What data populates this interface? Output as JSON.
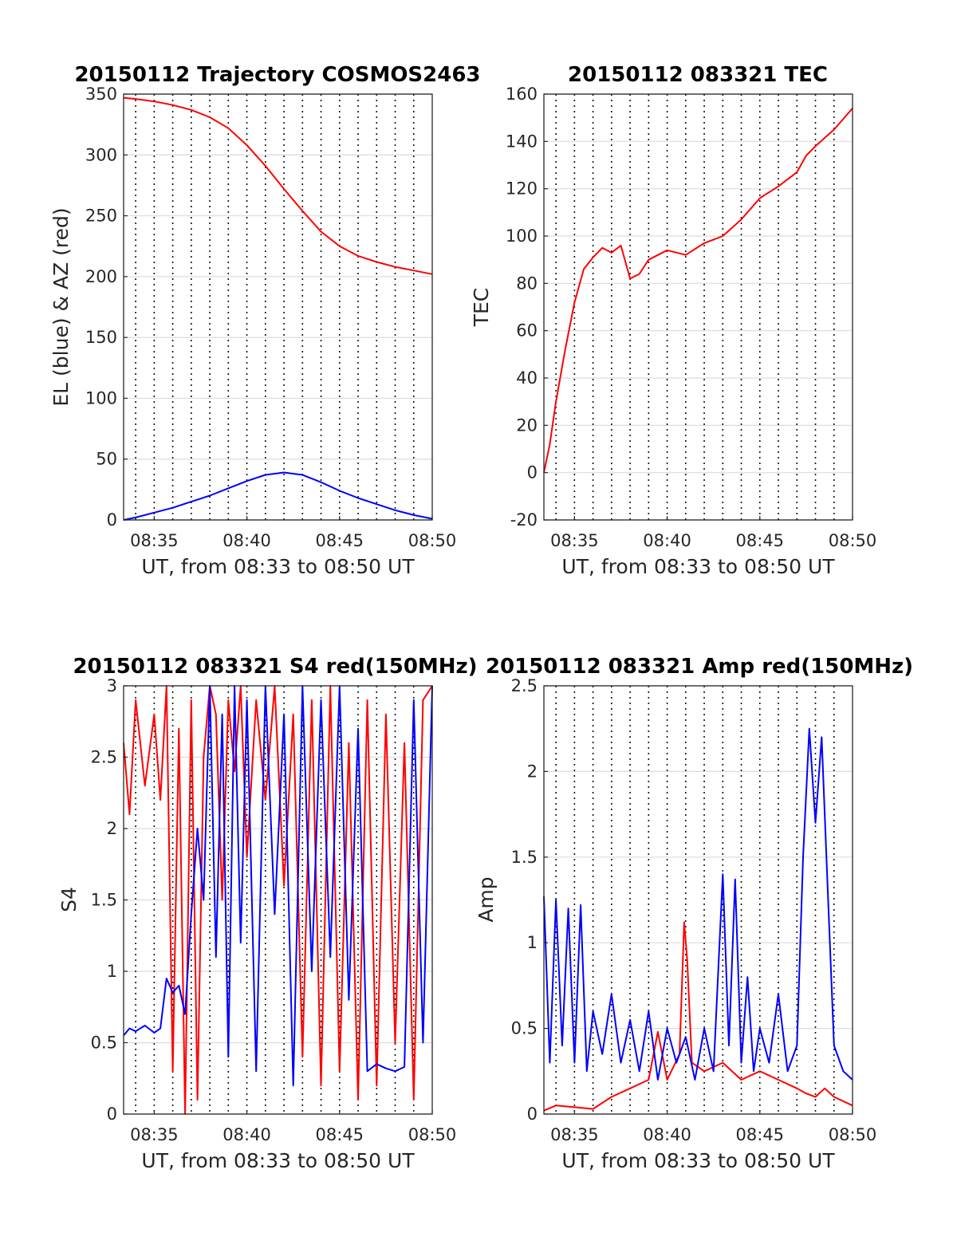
{
  "chart_data": [
    {
      "id": "traj",
      "type": "line",
      "title": "20150112 Trajectory COSMOS2463",
      "xlabel": "UT, from 08:33 to 08:50 UT",
      "ylabel": "EL (blue) & AZ (red)",
      "xlim": [
        "08:33:21",
        "08:50:00"
      ],
      "ylim": [
        0,
        350
      ],
      "xticks": [
        "08:35",
        "08:40",
        "08:45",
        "08:50"
      ],
      "yticks": [
        0,
        50,
        100,
        150,
        200,
        250,
        300,
        350
      ],
      "grid_minutes": [
        "08:34",
        "08:35",
        "08:36",
        "08:37",
        "08:38",
        "08:39",
        "08:40",
        "08:41",
        "08:42",
        "08:43",
        "08:44",
        "08:45",
        "08:46",
        "08:47",
        "08:48",
        "08:49"
      ],
      "series": [
        {
          "color": "#ff0000",
          "x": [
            "08:33:21",
            "08:34:00",
            "08:35:00",
            "08:36:00",
            "08:37:00",
            "08:38:00",
            "08:39:00",
            "08:40:00",
            "08:41:00",
            "08:42:00",
            "08:43:00",
            "08:44:00",
            "08:45:00",
            "08:46:00",
            "08:47:00",
            "08:48:00",
            "08:49:00",
            "08:50:00"
          ],
          "y": [
            347,
            346,
            344,
            341,
            337,
            331,
            322,
            308,
            291,
            272,
            254,
            237,
            225,
            217,
            212,
            208,
            205,
            202
          ]
        },
        {
          "color": "#0000ff",
          "x": [
            "08:33:21",
            "08:34:00",
            "08:35:00",
            "08:36:00",
            "08:37:00",
            "08:38:00",
            "08:39:00",
            "08:40:00",
            "08:41:00",
            "08:42:00",
            "08:43:00",
            "08:44:00",
            "08:45:00",
            "08:46:00",
            "08:47:00",
            "08:48:00",
            "08:49:00",
            "08:50:00"
          ],
          "y": [
            0,
            2,
            6,
            10,
            15,
            20,
            26,
            32,
            37,
            39,
            37,
            31,
            24,
            18,
            13,
            8,
            4,
            1
          ]
        }
      ]
    },
    {
      "id": "tec",
      "type": "line",
      "title": "20150112 083321 TEC",
      "xlabel": "UT, from 08:33 to 08:50 UT",
      "ylabel": "TEC",
      "xlim": [
        "08:33:21",
        "08:50:00"
      ],
      "ylim": [
        -20,
        160
      ],
      "xticks": [
        "08:35",
        "08:40",
        "08:45",
        "08:50"
      ],
      "yticks": [
        -20,
        0,
        20,
        40,
        60,
        80,
        100,
        120,
        140,
        160
      ],
      "grid_minutes": [
        "08:34",
        "08:35",
        "08:36",
        "08:37",
        "08:38",
        "08:39",
        "08:40",
        "08:41",
        "08:42",
        "08:43",
        "08:44",
        "08:45",
        "08:46",
        "08:47",
        "08:48",
        "08:49"
      ],
      "series": [
        {
          "color": "#ff0000",
          "x": [
            "08:33:21",
            "08:33:40",
            "08:34:00",
            "08:34:30",
            "08:35:00",
            "08:35:30",
            "08:36:00",
            "08:36:30",
            "08:37:00",
            "08:37:30",
            "08:38:00",
            "08:38:30",
            "08:39:00",
            "08:40:00",
            "08:41:00",
            "08:42:00",
            "08:43:00",
            "08:44:00",
            "08:45:00",
            "08:46:00",
            "08:47:00",
            "08:47:30",
            "08:48:00",
            "08:49:00",
            "08:50:00"
          ],
          "y": [
            0,
            12,
            30,
            52,
            72,
            86,
            91,
            95,
            93,
            96,
            82,
            84,
            90,
            94,
            92,
            97,
            100,
            107,
            116,
            121,
            127,
            134,
            138,
            145,
            154
          ]
        }
      ]
    },
    {
      "id": "s4",
      "type": "line",
      "title": "20150112 083321 S4 red(150MHz)",
      "xlabel": "UT, from 08:33 to 08:50 UT",
      "ylabel": "S4",
      "xlim": [
        "08:33:21",
        "08:50:00"
      ],
      "ylim": [
        0,
        3
      ],
      "xticks": [
        "08:35",
        "08:40",
        "08:45",
        "08:50"
      ],
      "yticks": [
        0,
        0.5,
        1,
        1.5,
        2,
        2.5,
        3
      ],
      "grid_minutes": [
        "08:34",
        "08:35",
        "08:36",
        "08:37",
        "08:38",
        "08:39",
        "08:40",
        "08:41",
        "08:42",
        "08:43",
        "08:44",
        "08:45",
        "08:46",
        "08:47",
        "08:48",
        "08:49"
      ],
      "series": [
        {
          "color": "#ff0000",
          "x": [
            "08:33:21",
            "08:33:40",
            "08:34:00",
            "08:34:30",
            "08:35:00",
            "08:35:20",
            "08:35:40",
            "08:36:00",
            "08:36:20",
            "08:36:40",
            "08:37:00",
            "08:37:20",
            "08:37:40",
            "08:38:00",
            "08:38:20",
            "08:38:40",
            "08:39:00",
            "08:39:20",
            "08:39:40",
            "08:40:00",
            "08:40:30",
            "08:41:00",
            "08:41:30",
            "08:42:00",
            "08:42:30",
            "08:43:00",
            "08:43:30",
            "08:44:00",
            "08:44:30",
            "08:45:00",
            "08:45:30",
            "08:46:00",
            "08:46:30",
            "08:47:00",
            "08:47:30",
            "08:48:00",
            "08:48:30",
            "08:49:00",
            "08:49:30",
            "08:50:00"
          ],
          "y": [
            2.6,
            2.1,
            2.9,
            2.3,
            2.8,
            2.2,
            3.0,
            0.3,
            2.7,
            0.0,
            2.9,
            0.1,
            2.5,
            3.0,
            2.8,
            1.5,
            2.9,
            2.4,
            3.0,
            1.8,
            2.9,
            2.2,
            3.0,
            1.6,
            2.8,
            0.4,
            2.9,
            0.2,
            3.0,
            0.3,
            2.6,
            0.1,
            2.9,
            0.2,
            2.8,
            0.5,
            2.6,
            0.1,
            2.9,
            3.0
          ]
        },
        {
          "color": "#0000ff",
          "x": [
            "08:33:21",
            "08:33:40",
            "08:34:00",
            "08:34:30",
            "08:35:00",
            "08:35:20",
            "08:35:40",
            "08:36:00",
            "08:36:20",
            "08:36:40",
            "08:37:00",
            "08:37:20",
            "08:37:40",
            "08:38:00",
            "08:38:20",
            "08:38:40",
            "08:39:00",
            "08:39:20",
            "08:39:40",
            "08:40:00",
            "08:40:30",
            "08:41:00",
            "08:41:30",
            "08:42:00",
            "08:42:30",
            "08:43:00",
            "08:43:30",
            "08:44:00",
            "08:44:30",
            "08:45:00",
            "08:45:30",
            "08:46:00",
            "08:46:30",
            "08:47:00",
            "08:47:30",
            "08:48:00",
            "08:48:30",
            "08:49:00",
            "08:49:30",
            "08:50:00"
          ],
          "y": [
            0.55,
            0.6,
            0.58,
            0.62,
            0.57,
            0.6,
            0.95,
            0.85,
            0.9,
            0.7,
            1.4,
            2.0,
            1.5,
            3.0,
            1.1,
            2.8,
            0.4,
            3.0,
            1.2,
            2.9,
            0.3,
            3.0,
            1.4,
            2.8,
            0.2,
            3.0,
            1.0,
            2.9,
            1.1,
            3.0,
            0.8,
            2.7,
            0.3,
            0.35,
            0.32,
            0.3,
            0.33,
            2.9,
            0.5,
            3.0
          ]
        }
      ]
    },
    {
      "id": "amp",
      "type": "line",
      "title": "20150112 083321 Amp red(150MHz)",
      "xlabel": "UT, from 08:33 to 08:50 UT",
      "ylabel": "Amp",
      "xlim": [
        "08:33:21",
        "08:50:00"
      ],
      "ylim": [
        0,
        2.5
      ],
      "xticks": [
        "08:35",
        "08:40",
        "08:45",
        "08:50"
      ],
      "yticks": [
        0,
        0.5,
        1,
        1.5,
        2,
        2.5
      ],
      "grid_minutes": [
        "08:34",
        "08:35",
        "08:36",
        "08:37",
        "08:38",
        "08:39",
        "08:40",
        "08:41",
        "08:42",
        "08:43",
        "08:44",
        "08:45",
        "08:46",
        "08:47",
        "08:48",
        "08:49"
      ],
      "series": [
        {
          "color": "#ff0000",
          "x": [
            "08:33:21",
            "08:34:00",
            "08:35:00",
            "08:36:00",
            "08:37:00",
            "08:38:00",
            "08:39:00",
            "08:39:30",
            "08:40:00",
            "08:40:40",
            "08:40:55",
            "08:41:05",
            "08:41:20",
            "08:42:00",
            "08:43:00",
            "08:44:00",
            "08:45:00",
            "08:46:00",
            "08:47:00",
            "08:47:30",
            "08:48:00",
            "08:48:30",
            "08:49:00",
            "08:50:00"
          ],
          "y": [
            0.02,
            0.05,
            0.04,
            0.03,
            0.1,
            0.15,
            0.2,
            0.48,
            0.2,
            0.35,
            1.12,
            0.9,
            0.3,
            0.25,
            0.3,
            0.2,
            0.25,
            0.2,
            0.15,
            0.12,
            0.1,
            0.15,
            0.1,
            0.05
          ]
        },
        {
          "color": "#0000ff",
          "x": [
            "08:33:21",
            "08:33:40",
            "08:34:00",
            "08:34:20",
            "08:34:40",
            "08:35:00",
            "08:35:20",
            "08:35:40",
            "08:36:00",
            "08:36:30",
            "08:37:00",
            "08:37:30",
            "08:38:00",
            "08:38:30",
            "08:39:00",
            "08:39:30",
            "08:40:00",
            "08:40:30",
            "08:41:00",
            "08:41:30",
            "08:42:00",
            "08:42:30",
            "08:43:00",
            "08:43:20",
            "08:43:40",
            "08:44:00",
            "08:44:20",
            "08:44:40",
            "08:45:00",
            "08:45:30",
            "08:46:00",
            "08:46:30",
            "08:47:00",
            "08:47:20",
            "08:47:40",
            "08:48:00",
            "08:48:20",
            "08:48:40",
            "08:49:00",
            "08:49:30",
            "08:50:00"
          ],
          "y": [
            1.27,
            0.3,
            1.25,
            0.4,
            1.2,
            0.3,
            1.22,
            0.25,
            0.6,
            0.35,
            0.7,
            0.3,
            0.55,
            0.25,
            0.6,
            0.2,
            0.5,
            0.3,
            0.45,
            0.2,
            0.5,
            0.25,
            1.4,
            0.4,
            1.37,
            0.3,
            0.8,
            0.25,
            0.5,
            0.3,
            0.7,
            0.25,
            0.4,
            1.5,
            2.25,
            1.7,
            2.2,
            1.3,
            0.4,
            0.25,
            0.2
          ]
        }
      ]
    }
  ]
}
